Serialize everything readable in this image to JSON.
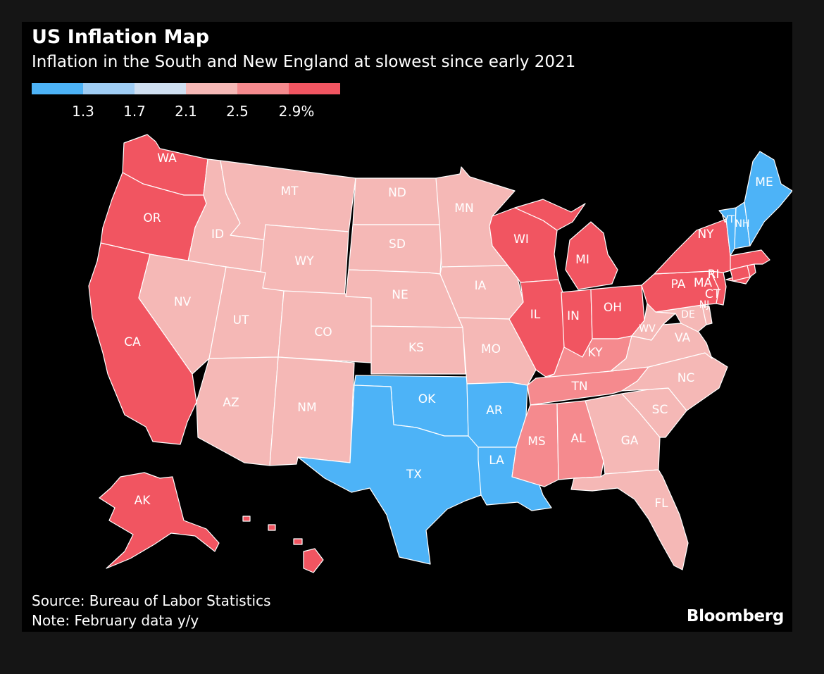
{
  "header": {
    "title": "US Inflation Map",
    "subtitle": "Inflation in the South and New England at slowest since early 2021"
  },
  "legend": {
    "colors": [
      "#4db3f7",
      "#9fcdf4",
      "#cfdff1",
      "#f5b8b6",
      "#f58a8e",
      "#f15561"
    ],
    "labels": [
      "1.3",
      "1.7",
      "2.1",
      "2.5",
      "2.9%"
    ]
  },
  "map": {
    "states": [
      {
        "abbr": "WA",
        "class": 5
      },
      {
        "abbr": "OR",
        "class": 5
      },
      {
        "abbr": "CA",
        "class": 5
      },
      {
        "abbr": "AK",
        "class": 5
      },
      {
        "abbr": "HI",
        "class": 5
      },
      {
        "abbr": "ID",
        "class": 3
      },
      {
        "abbr": "MT",
        "class": 3
      },
      {
        "abbr": "WY",
        "class": 3
      },
      {
        "abbr": "NV",
        "class": 3
      },
      {
        "abbr": "UT",
        "class": 3
      },
      {
        "abbr": "CO",
        "class": 3
      },
      {
        "abbr": "AZ",
        "class": 3
      },
      {
        "abbr": "NM",
        "class": 3
      },
      {
        "abbr": "ND",
        "class": 3
      },
      {
        "abbr": "SD",
        "class": 3
      },
      {
        "abbr": "NE",
        "class": 3
      },
      {
        "abbr": "KS",
        "class": 3
      },
      {
        "abbr": "MN",
        "class": 3
      },
      {
        "abbr": "IA",
        "class": 3
      },
      {
        "abbr": "MO",
        "class": 3
      },
      {
        "abbr": "OK",
        "class": 0
      },
      {
        "abbr": "TX",
        "class": 0
      },
      {
        "abbr": "AR",
        "class": 0
      },
      {
        "abbr": "LA",
        "class": 0
      },
      {
        "abbr": "WI",
        "class": 5
      },
      {
        "abbr": "MI",
        "class": 5
      },
      {
        "abbr": "IL",
        "class": 5
      },
      {
        "abbr": "IN",
        "class": 5
      },
      {
        "abbr": "OH",
        "class": 5
      },
      {
        "abbr": "KY",
        "class": 4
      },
      {
        "abbr": "TN",
        "class": 4
      },
      {
        "abbr": "MS",
        "class": 4
      },
      {
        "abbr": "AL",
        "class": 4
      },
      {
        "abbr": "GA",
        "class": 3
      },
      {
        "abbr": "FL",
        "class": 3
      },
      {
        "abbr": "SC",
        "class": 3
      },
      {
        "abbr": "NC",
        "class": 3
      },
      {
        "abbr": "VA",
        "class": 3
      },
      {
        "abbr": "WV",
        "class": 3
      },
      {
        "abbr": "MD",
        "class": 3
      },
      {
        "abbr": "DE",
        "class": 3
      },
      {
        "abbr": "PA",
        "class": 5
      },
      {
        "abbr": "NY",
        "class": 5
      },
      {
        "abbr": "NJ",
        "class": 5
      },
      {
        "abbr": "CT",
        "class": 5
      },
      {
        "abbr": "RI",
        "class": 5
      },
      {
        "abbr": "MA",
        "class": 5
      },
      {
        "abbr": "VT",
        "class": 0
      },
      {
        "abbr": "NH",
        "class": 0
      },
      {
        "abbr": "ME",
        "class": 0
      }
    ]
  },
  "footer": {
    "source": "Source: Bureau of Labor Statistics",
    "note": "Note: February data y/y",
    "logo": "Bloomberg"
  }
}
